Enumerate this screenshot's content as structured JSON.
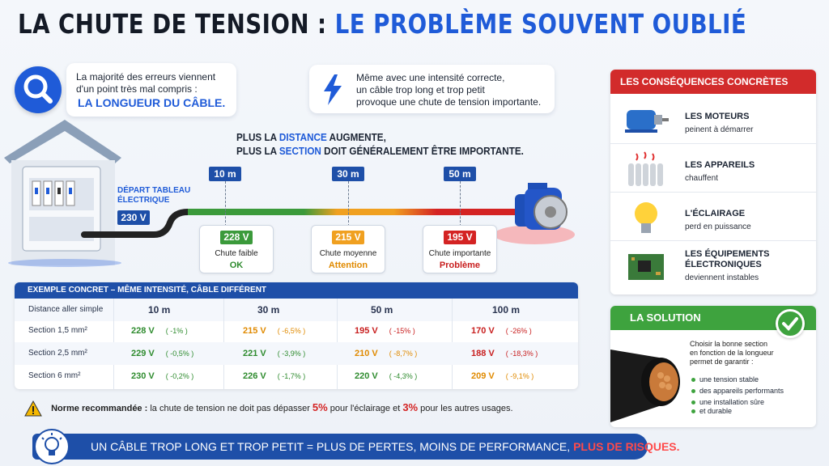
{
  "title": {
    "part1": "LA CHUTE DE TENSION :",
    "part2": "LE PROBLÈME SOUVENT OUBLIÉ"
  },
  "intro": {
    "line1": "La majorité des erreurs viennent",
    "line2": "d'un point très mal compris :",
    "highlight": "LA LONGUEUR DU CÂBLE."
  },
  "warning": {
    "line1": "Même avec une intensité correcte,",
    "line2": "un câble trop long et trop petit",
    "line3": "provoque une chute de tension importante."
  },
  "distance": {
    "line1_a": "PLUS LA ",
    "line1_b": "DISTANCE",
    "line1_c": " AUGMENTE,",
    "line2_a": "PLUS LA ",
    "line2_b": "SECTION",
    "line2_c": " DOIT GÉNÉRALEMENT ÊTRE IMPORTANTE."
  },
  "source": {
    "label_line1": "DÉPART TABLEAU",
    "label_line2": "ÉLECTRIQUE",
    "voltage": "230 V"
  },
  "markers": [
    {
      "distance": "10 m",
      "voltage": "228 V",
      "desc": "Chute faible",
      "status": "OK",
      "color": "#3b9a3b"
    },
    {
      "distance": "30 m",
      "voltage": "215 V",
      "desc": "Chute moyenne",
      "status": "Attention",
      "color": "#f0a020"
    },
    {
      "distance": "50 m",
      "voltage": "195 V",
      "desc": "Chute importante",
      "status": "Problème",
      "color": "#d42323"
    }
  ],
  "table": {
    "header": "EXEMPLE CONCRET – MÊME INTENSITÉ, CÂBLE DIFFÉRENT",
    "col_label": "Distance aller simple",
    "columns": [
      "10 m",
      "30 m",
      "50 m",
      "100 m"
    ],
    "rows": [
      {
        "label": "Section 1,5 mm²",
        "cells": [
          {
            "v": "228 V",
            "p": "( -1% )",
            "c": "#2e8b2e"
          },
          {
            "v": "215 V",
            "p": "( -6,5% )",
            "c": "#e08a00"
          },
          {
            "v": "195 V",
            "p": "( -15% )",
            "c": "#c81e1e"
          },
          {
            "v": "170 V",
            "p": "( -26% )",
            "c": "#c81e1e"
          }
        ]
      },
      {
        "label": "Section 2,5 mm²",
        "cells": [
          {
            "v": "229 V",
            "p": "( -0,5% )",
            "c": "#2e8b2e"
          },
          {
            "v": "221 V",
            "p": "( -3,9% )",
            "c": "#2e8b2e"
          },
          {
            "v": "210 V",
            "p": "( -8,7% )",
            "c": "#e08a00"
          },
          {
            "v": "188 V",
            "p": "( -18,3% )",
            "c": "#c81e1e"
          }
        ]
      },
      {
        "label": "Section 6 mm²",
        "cells": [
          {
            "v": "230 V",
            "p": "( -0,2% )",
            "c": "#2e8b2e"
          },
          {
            "v": "226 V",
            "p": "( -1,7% )",
            "c": "#2e8b2e"
          },
          {
            "v": "220 V",
            "p": "( -4,3% )",
            "c": "#2e8b2e"
          },
          {
            "v": "209 V",
            "p": "( -9,1% )",
            "c": "#e08a00"
          }
        ]
      }
    ]
  },
  "norme": {
    "label": "Norme recommandée :",
    "text1": " la chute de tension ne doit pas dépasser ",
    "val1": "5%",
    "text2": " pour l'éclairage et ",
    "val2": "3%",
    "text3": " pour les autres usages."
  },
  "bottom": {
    "text": "UN CÂBLE TROP LONG ET TROP PETIT = PLUS DE PERTES, MOINS DE PERFORMANCE, ",
    "red": "PLUS DE RISQUES."
  },
  "consequences": {
    "header": "LES CONSÉQUENCES CONCRÈTES",
    "items": [
      {
        "title": "LES MOTEURS",
        "sub": "peinent à démarrer"
      },
      {
        "title": "LES APPAREILS",
        "sub": "chauffent"
      },
      {
        "title": "L'ÉCLAIRAGE",
        "sub": "perd en puissance"
      },
      {
        "title": "LES ÉQUIPEMENTS",
        "title2": "ÉLECTRONIQUES",
        "sub": "deviennent instables"
      }
    ]
  },
  "solution": {
    "header": "LA SOLUTION",
    "line1": "Choisir la bonne section",
    "line2": "en fonction de la longueur",
    "line3": "permet de garantir :",
    "bullets": [
      "une tension stable",
      "des appareils performants",
      "une installation sûre",
      "et durable"
    ]
  }
}
